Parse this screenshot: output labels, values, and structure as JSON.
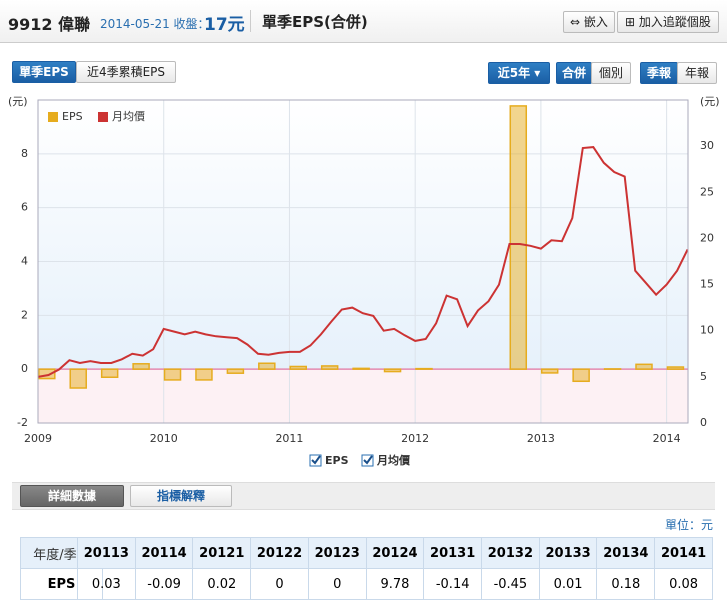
{
  "header": {
    "stock": "9912 偉聯",
    "date_close": "2014-05-21 收盤：",
    "close": "17元",
    "title": "單季EPS(合併)",
    "embed": "嵌入",
    "track": "加入追蹤個股"
  },
  "tabs": {
    "left": [
      "單季EPS",
      "近4季累積EPS"
    ],
    "range": "近5年",
    "scope": [
      "合併",
      "個別"
    ],
    "period": [
      "季報",
      "年報"
    ]
  },
  "chart_data": {
    "type": "bar",
    "y_label": "(元)",
    "y2_label": "(元)",
    "xlim": [
      2009,
      2014.17
    ],
    "xticks": [
      2009,
      2010,
      2011,
      2012,
      2013,
      2014
    ],
    "ylim": [
      -2,
      10
    ],
    "yticks": [
      -2,
      0,
      2,
      4,
      6,
      8
    ],
    "y2lim": [
      0,
      35
    ],
    "y2ticks": [
      0,
      5,
      10,
      15,
      20,
      25,
      30
    ],
    "grid": true,
    "legend": "top-left",
    "series": [
      {
        "name": "EPS",
        "type": "bar",
        "color": "#e6ac1e",
        "values": [
          -0.35,
          -0.7,
          -0.3,
          0.2,
          -0.4,
          -0.4,
          -0.15,
          0.22,
          0.1,
          0.12,
          0.03,
          -0.09,
          0.02,
          0,
          0,
          9.78,
          -0.14,
          -0.45,
          0.01,
          0.18,
          0.08
        ]
      },
      {
        "name": "月均價",
        "type": "line",
        "axis": "y2",
        "color": "#cc3333",
        "values": [
          5.0,
          5.2,
          5.8,
          6.8,
          6.5,
          6.7,
          6.5,
          6.5,
          6.9,
          7.5,
          7.3,
          8.0,
          10.2,
          9.9,
          9.6,
          9.9,
          9.6,
          9.4,
          9.3,
          9.2,
          8.5,
          7.5,
          7.4,
          7.6,
          7.7,
          7.7,
          8.4,
          9.6,
          11.0,
          12.3,
          12.5,
          11.9,
          11.6,
          10.0,
          10.2,
          9.5,
          8.9,
          9.1,
          10.8,
          13.8,
          13.4,
          10.5,
          12.2,
          13.2,
          15.0,
          19.4,
          19.4,
          19.2,
          18.9,
          19.8,
          19.7,
          22.2,
          29.8,
          29.9,
          28.2,
          27.2,
          26.7,
          16.5,
          15.2,
          13.9,
          15.0,
          16.5,
          18.8
        ]
      }
    ]
  },
  "section": {
    "buttons": [
      "詳細數據",
      "指標解釋"
    ],
    "unit": "單位：元"
  },
  "table": {
    "corner": "年度/季度",
    "row_label": "EPS",
    "columns": [
      "20113",
      "20114",
      "20121",
      "20122",
      "20123",
      "20124",
      "20131",
      "20132",
      "20133",
      "20134",
      "20141"
    ],
    "values": [
      0.03,
      -0.09,
      0.02,
      0,
      0,
      9.78,
      -0.14,
      -0.45,
      0.01,
      0.18,
      0.08
    ]
  }
}
